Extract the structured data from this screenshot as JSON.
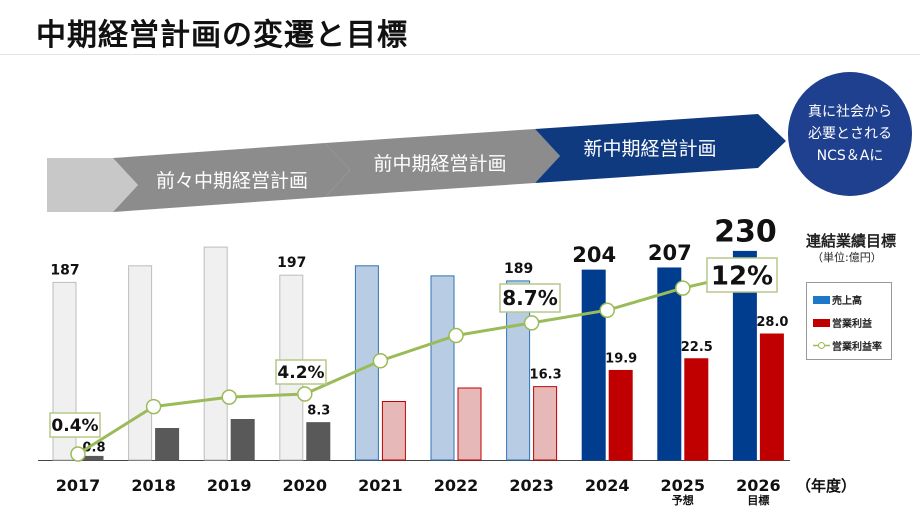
{
  "title": "中期経営計画の変遷と目標",
  "plans": [
    "前々中期経営計画",
    "前中期経営計画",
    "新中期経営計画"
  ],
  "goal_circle": [
    "真に社会から",
    "必要とされる",
    "NCS＆Aに"
  ],
  "legend": {
    "title": "連結業績目標",
    "unit": "（単位:億円）",
    "sales": "売上高",
    "profit": "営業利益",
    "rate": "営業利益率"
  },
  "colors": {
    "line": "#9bbb59",
    "sales_new": "#003d8f",
    "profit_new": "#c00000",
    "sales_old": "#f0f0f0",
    "profit_old": "#595959",
    "sales_prev": "#b8cce4",
    "profit_prev": "#e6b9b8",
    "arrow_gray": "#8c8c8c",
    "arrow_navy": "#0f3a80"
  },
  "chart_data": {
    "type": "bar+line",
    "categories": [
      "2017",
      "2018",
      "2019",
      "2020",
      "2021",
      "2022",
      "2023",
      "2024",
      "2025",
      "2026"
    ],
    "sublabels": [
      "",
      "",
      "",
      "",
      "",
      "",
      "",
      "",
      "予想",
      "目標"
    ],
    "xlabel": "（年度）",
    "series": [
      {
        "name": "売上高",
        "type": "bar",
        "values": [
          187,
          210,
          236,
          197,
          210,
          196,
          189,
          204,
          207,
          230
        ],
        "labels": [
          "187",
          "",
          "",
          "197",
          "",
          "",
          "189",
          "204",
          "207",
          "230"
        ]
      },
      {
        "name": "営業利益",
        "type": "bar",
        "values": [
          0.8,
          7,
          9,
          8.3,
          13,
          16,
          16.3,
          19.9,
          22.5,
          28.0
        ],
        "labels": [
          "0.8",
          "",
          "",
          "8.3",
          "",
          "",
          "16.3",
          "19.9",
          "22.5",
          "28.0"
        ]
      },
      {
        "name": "営業利益率",
        "type": "line",
        "unit": "%",
        "values": [
          0.4,
          3.4,
          4.0,
          4.2,
          6.3,
          7.9,
          8.7,
          9.5,
          10.9,
          12
        ],
        "labels": [
          "0.4%",
          "",
          "",
          "4.2%",
          "",
          "",
          "8.7%",
          "",
          "",
          "12%"
        ]
      }
    ]
  }
}
